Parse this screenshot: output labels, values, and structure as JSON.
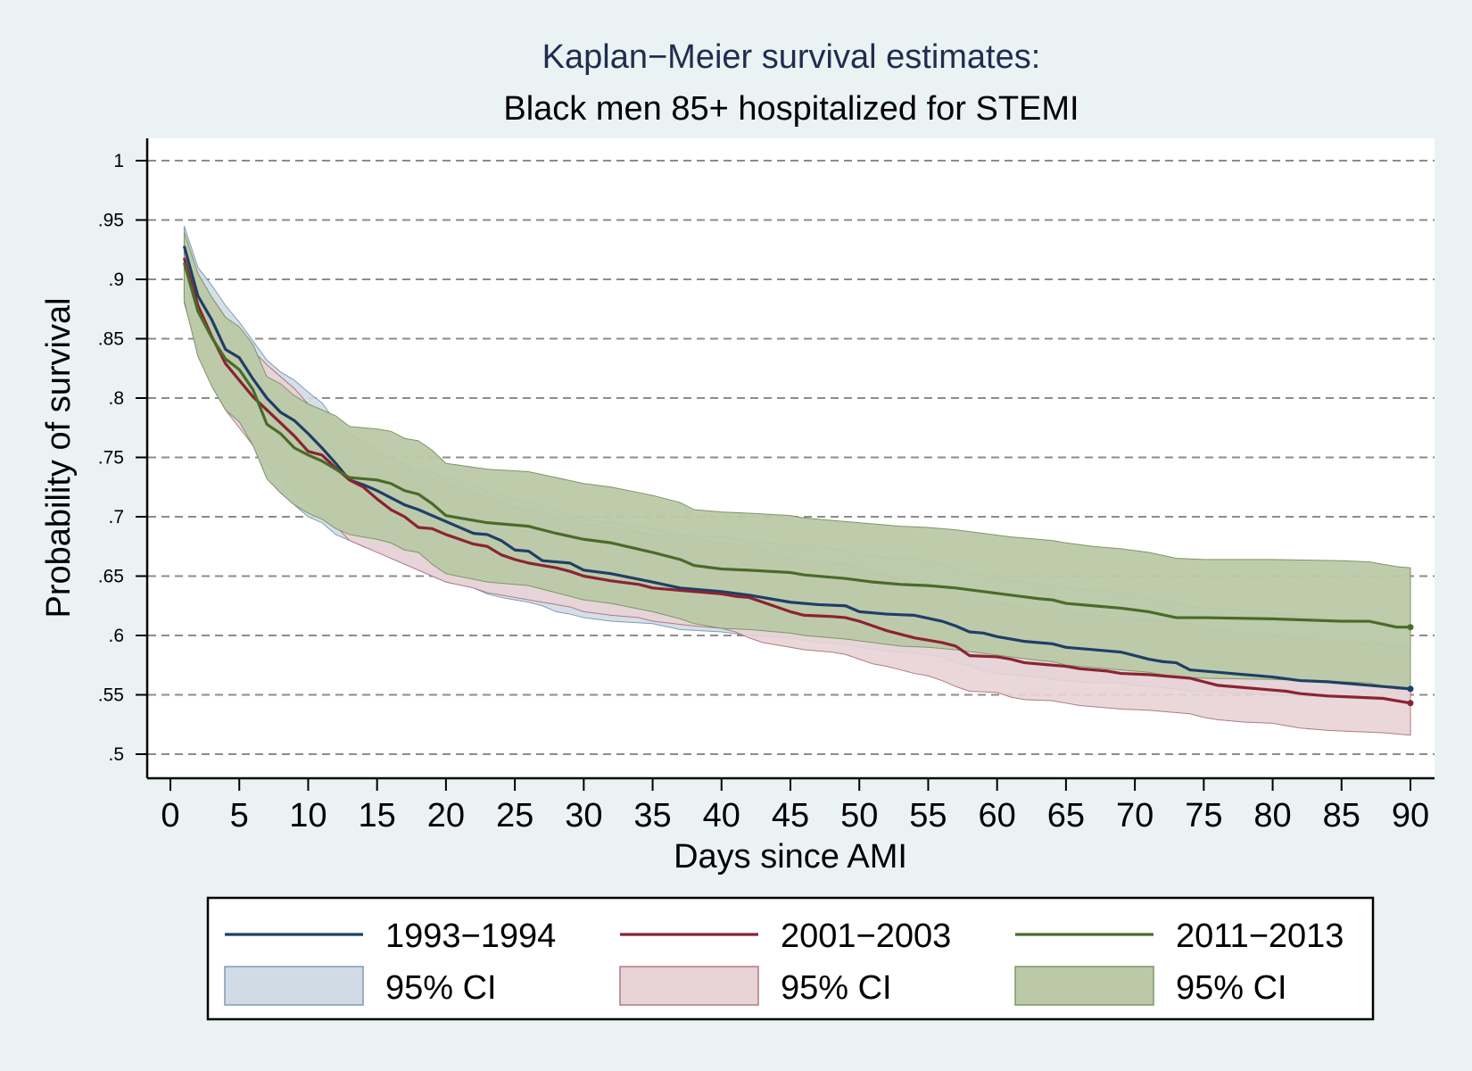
{
  "chart_data": {
    "type": "line",
    "title": "Kaplan−Meier survival estimates:",
    "subtitle": "Black men 85+ hospitalized for STEMI",
    "xlabel": "Days since AMI",
    "ylabel": "Probability of survival",
    "xlim": [
      0,
      90
    ],
    "ylim": [
      0.5,
      1.0
    ],
    "x_ticks": [
      0,
      5,
      10,
      15,
      20,
      25,
      30,
      35,
      40,
      45,
      50,
      55,
      60,
      65,
      70,
      75,
      80,
      85,
      90
    ],
    "x_tick_labels": [
      "0",
      "5",
      "10",
      "15",
      "20",
      "25",
      "30",
      "35",
      "40",
      "45",
      "50",
      "55",
      "60",
      "65",
      "70",
      "75",
      "80",
      "85",
      "90"
    ],
    "y_ticks": [
      0.5,
      0.55,
      0.6,
      0.65,
      0.7,
      0.75,
      0.8,
      0.85,
      0.9,
      0.95,
      1.0
    ],
    "y_tick_labels": [
      ".5",
      ".55",
      ".6",
      ".65",
      ".7",
      ".75",
      ".8",
      ".85",
      ".9",
      ".95",
      "1"
    ],
    "grid": "horizontal dashed",
    "legend_position": "bottom",
    "colors": {
      "plot_background": "#ffffff",
      "page_background": "#eaf2f3",
      "grid": "#8c8c8c",
      "title": "#1f2d4f"
    },
    "series": [
      {
        "name": "1993−1994",
        "ci_name": "95% CI",
        "color": "#1e3f66",
        "ci_fill": "#d1dbe5",
        "ci_stroke": "#7f9bb5",
        "x": [
          1,
          2,
          3,
          4,
          5,
          6,
          7,
          8,
          9,
          10,
          11,
          12,
          13,
          14,
          15,
          16,
          17,
          18,
          19,
          20,
          22,
          23,
          24,
          25,
          26,
          27,
          28,
          29,
          30,
          32,
          35,
          37,
          40,
          42,
          45,
          47,
          49,
          50,
          52,
          54,
          56,
          57,
          58,
          59,
          60,
          62,
          63,
          64,
          65,
          67,
          68,
          69,
          70,
          71,
          72,
          73,
          74,
          77,
          80,
          82,
          84,
          86,
          88,
          89,
          90
        ],
        "y": [
          0.928,
          0.886,
          0.866,
          0.841,
          0.834,
          0.816,
          0.8,
          0.788,
          0.781,
          0.77,
          0.758,
          0.745,
          0.731,
          0.727,
          0.722,
          0.716,
          0.71,
          0.706,
          0.701,
          0.696,
          0.686,
          0.685,
          0.68,
          0.672,
          0.671,
          0.663,
          0.662,
          0.661,
          0.655,
          0.652,
          0.645,
          0.64,
          0.637,
          0.634,
          0.628,
          0.626,
          0.625,
          0.62,
          0.618,
          0.617,
          0.612,
          0.608,
          0.603,
          0.602,
          0.599,
          0.595,
          0.594,
          0.593,
          0.59,
          0.588,
          0.587,
          0.586,
          0.583,
          0.58,
          0.578,
          0.577,
          0.571,
          0.568,
          0.565,
          0.562,
          0.561,
          0.559,
          0.557,
          0.556,
          0.555
        ],
        "lower": [
          0.88,
          0.84,
          0.815,
          0.795,
          0.78,
          0.76,
          0.735,
          0.72,
          0.71,
          0.7,
          0.695,
          0.685,
          0.68,
          0.675,
          0.672,
          0.665,
          0.66,
          0.655,
          0.65,
          0.645,
          0.64,
          0.635,
          0.632,
          0.63,
          0.628,
          0.625,
          0.62,
          0.618,
          0.615,
          0.612,
          0.61,
          0.605,
          0.603,
          0.6,
          0.598,
          0.594,
          0.593,
          0.59,
          0.587,
          0.585,
          0.582,
          0.577,
          0.575,
          0.57,
          0.568,
          0.566,
          0.565,
          0.563,
          0.562,
          0.56,
          0.56,
          0.56,
          0.558,
          0.557,
          0.556,
          0.555,
          0.553,
          0.552,
          0.55,
          0.549,
          0.548,
          0.547,
          0.546,
          0.545,
          0.545
        ],
        "upper": [
          0.945,
          0.91,
          0.895,
          0.878,
          0.864,
          0.848,
          0.832,
          0.822,
          0.815,
          0.805,
          0.796,
          0.78,
          0.765,
          0.76,
          0.755,
          0.75,
          0.745,
          0.74,
          0.737,
          0.733,
          0.726,
          0.722,
          0.718,
          0.715,
          0.713,
          0.71,
          0.706,
          0.702,
          0.698,
          0.695,
          0.69,
          0.685,
          0.683,
          0.68,
          0.676,
          0.675,
          0.672,
          0.668,
          0.666,
          0.665,
          0.66,
          0.656,
          0.652,
          0.651,
          0.648,
          0.645,
          0.643,
          0.642,
          0.64,
          0.638,
          0.637,
          0.636,
          0.634,
          0.631,
          0.629,
          0.628,
          0.624,
          0.622,
          0.619,
          0.616,
          0.614,
          0.613,
          0.611,
          0.61,
          0.608
        ]
      },
      {
        "name": "2001−2003",
        "ci_name": "95% CI",
        "color": "#8b2332",
        "ci_fill": "#e8d3d6",
        "ci_stroke": "#b07a82",
        "x": [
          1,
          2,
          3,
          4,
          5,
          6,
          7,
          8,
          9,
          10,
          11,
          12,
          13,
          14,
          15,
          16,
          17,
          18,
          19,
          20,
          22,
          23,
          24,
          25,
          26,
          27,
          28,
          29,
          30,
          32,
          34,
          35,
          38,
          40,
          41,
          42,
          43,
          45,
          46,
          48,
          49,
          50,
          51,
          52,
          53,
          54,
          55,
          56,
          57,
          58,
          60,
          61,
          62,
          64,
          65,
          66,
          68,
          69,
          71,
          72,
          74,
          75,
          76,
          78,
          80,
          81,
          82,
          84,
          86,
          88,
          90
        ],
        "y": [
          0.918,
          0.878,
          0.852,
          0.829,
          0.815,
          0.801,
          0.79,
          0.779,
          0.768,
          0.755,
          0.752,
          0.741,
          0.731,
          0.725,
          0.715,
          0.706,
          0.7,
          0.691,
          0.69,
          0.685,
          0.677,
          0.675,
          0.668,
          0.664,
          0.661,
          0.659,
          0.657,
          0.654,
          0.65,
          0.646,
          0.643,
          0.64,
          0.637,
          0.635,
          0.633,
          0.632,
          0.628,
          0.62,
          0.617,
          0.616,
          0.615,
          0.612,
          0.608,
          0.604,
          0.601,
          0.598,
          0.596,
          0.594,
          0.591,
          0.583,
          0.582,
          0.58,
          0.577,
          0.575,
          0.574,
          0.572,
          0.57,
          0.568,
          0.567,
          0.566,
          0.564,
          0.561,
          0.558,
          0.556,
          0.554,
          0.553,
          0.551,
          0.549,
          0.548,
          0.547,
          0.543
        ],
        "lower": [
          0.882,
          0.84,
          0.81,
          0.79,
          0.775,
          0.76,
          0.745,
          0.735,
          0.72,
          0.71,
          0.7,
          0.692,
          0.68,
          0.675,
          0.67,
          0.665,
          0.66,
          0.655,
          0.65,
          0.645,
          0.64,
          0.636,
          0.634,
          0.632,
          0.63,
          0.628,
          0.626,
          0.624,
          0.62,
          0.617,
          0.615,
          0.612,
          0.608,
          0.606,
          0.603,
          0.598,
          0.594,
          0.59,
          0.588,
          0.586,
          0.584,
          0.58,
          0.576,
          0.574,
          0.571,
          0.568,
          0.566,
          0.562,
          0.557,
          0.553,
          0.552,
          0.548,
          0.546,
          0.545,
          0.543,
          0.541,
          0.539,
          0.538,
          0.537,
          0.536,
          0.534,
          0.531,
          0.529,
          0.527,
          0.526,
          0.524,
          0.522,
          0.52,
          0.519,
          0.518,
          0.516
        ],
        "upper": [
          0.935,
          0.905,
          0.885,
          0.868,
          0.855,
          0.84,
          0.828,
          0.818,
          0.808,
          0.795,
          0.79,
          0.78,
          0.77,
          0.763,
          0.756,
          0.748,
          0.742,
          0.735,
          0.732,
          0.727,
          0.72,
          0.717,
          0.712,
          0.708,
          0.705,
          0.703,
          0.7,
          0.698,
          0.694,
          0.69,
          0.687,
          0.685,
          0.681,
          0.678,
          0.676,
          0.675,
          0.672,
          0.665,
          0.662,
          0.661,
          0.66,
          0.657,
          0.653,
          0.65,
          0.647,
          0.644,
          0.642,
          0.64,
          0.637,
          0.63,
          0.628,
          0.626,
          0.623,
          0.621,
          0.62,
          0.618,
          0.616,
          0.614,
          0.613,
          0.612,
          0.61,
          0.607,
          0.604,
          0.602,
          0.6,
          0.599,
          0.597,
          0.595,
          0.594,
          0.593,
          0.589
        ]
      },
      {
        "name": "2011−2013",
        "ci_name": "95% CI",
        "color": "#4a6b2a",
        "ci_fill": "#bbc9a8",
        "ci_stroke": "#7e9668",
        "x": [
          1,
          2,
          3,
          4,
          5,
          6,
          7,
          8,
          9,
          10,
          11,
          12,
          13,
          14,
          15,
          16,
          17,
          18,
          19,
          20,
          23,
          26,
          28,
          30,
          32,
          35,
          37,
          38,
          40,
          42,
          45,
          46,
          49,
          51,
          53,
          55,
          57,
          59,
          61,
          63,
          64,
          65,
          67,
          69,
          71,
          73,
          75,
          80,
          85,
          87,
          89,
          90
        ],
        "y": [
          0.914,
          0.873,
          0.851,
          0.833,
          0.824,
          0.807,
          0.778,
          0.77,
          0.758,
          0.752,
          0.747,
          0.74,
          0.733,
          0.732,
          0.731,
          0.728,
          0.722,
          0.719,
          0.711,
          0.701,
          0.695,
          0.692,
          0.686,
          0.681,
          0.678,
          0.67,
          0.664,
          0.659,
          0.656,
          0.655,
          0.653,
          0.651,
          0.648,
          0.645,
          0.643,
          0.642,
          0.64,
          0.637,
          0.634,
          0.631,
          0.63,
          0.627,
          0.625,
          0.623,
          0.62,
          0.615,
          0.615,
          0.614,
          0.612,
          0.612,
          0.607,
          0.607
        ],
        "lower": [
          0.882,
          0.835,
          0.81,
          0.79,
          0.78,
          0.76,
          0.732,
          0.72,
          0.71,
          0.703,
          0.698,
          0.69,
          0.685,
          0.683,
          0.681,
          0.678,
          0.672,
          0.67,
          0.66,
          0.652,
          0.645,
          0.642,
          0.636,
          0.63,
          0.627,
          0.62,
          0.614,
          0.61,
          0.606,
          0.605,
          0.602,
          0.6,
          0.597,
          0.594,
          0.591,
          0.59,
          0.588,
          0.585,
          0.582,
          0.579,
          0.578,
          0.575,
          0.573,
          0.571,
          0.569,
          0.565,
          0.564,
          0.563,
          0.561,
          0.56,
          0.555,
          0.555
        ],
        "upper": [
          0.94,
          0.905,
          0.885,
          0.868,
          0.86,
          0.845,
          0.818,
          0.812,
          0.802,
          0.795,
          0.79,
          0.785,
          0.776,
          0.775,
          0.774,
          0.772,
          0.766,
          0.764,
          0.756,
          0.745,
          0.74,
          0.738,
          0.733,
          0.728,
          0.725,
          0.718,
          0.712,
          0.706,
          0.704,
          0.703,
          0.701,
          0.699,
          0.696,
          0.694,
          0.692,
          0.691,
          0.689,
          0.686,
          0.683,
          0.681,
          0.68,
          0.678,
          0.675,
          0.673,
          0.67,
          0.665,
          0.664,
          0.664,
          0.663,
          0.662,
          0.658,
          0.657
        ]
      }
    ]
  }
}
